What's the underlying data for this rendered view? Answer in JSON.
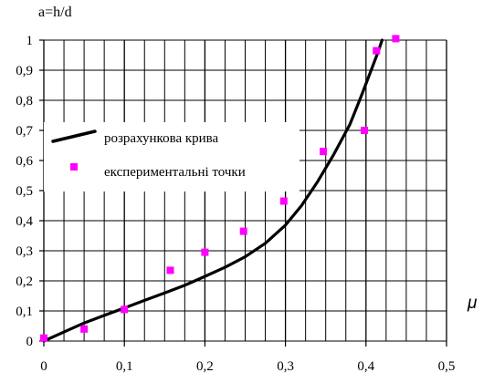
{
  "chart_data": {
    "type": "scatter",
    "ylabel": "a=h/d",
    "xlabel": "μ",
    "xlim": [
      0,
      0.5
    ],
    "ylim": [
      0,
      1
    ],
    "grid": true,
    "legend_placement": "upper-left",
    "x_tick_labels": [
      "0",
      "0,1",
      "0,2",
      "0,3",
      "0,4",
      "0,5"
    ],
    "y_tick_labels": [
      "0",
      "0,1",
      "0,2",
      "0,3",
      "0,4",
      "0,5",
      "0,6",
      "0,7",
      "0,8",
      "0,9",
      "1"
    ],
    "series": [
      {
        "name": "розрахункова крива",
        "kind": "line",
        "color": "#000000",
        "x": [
          0,
          0.025,
          0.05,
          0.075,
          0.1,
          0.125,
          0.15,
          0.175,
          0.2,
          0.225,
          0.25,
          0.275,
          0.3,
          0.32,
          0.34,
          0.36,
          0.38,
          0.395,
          0.405,
          0.415,
          0.42
        ],
        "y": [
          0,
          0.03,
          0.06,
          0.085,
          0.11,
          0.135,
          0.16,
          0.185,
          0.215,
          0.245,
          0.28,
          0.325,
          0.385,
          0.45,
          0.53,
          0.62,
          0.72,
          0.82,
          0.89,
          0.96,
          1.0
        ]
      },
      {
        "name": "експериментальні точки",
        "kind": "scatter",
        "color": "#ff00ff",
        "x": [
          0,
          0.05,
          0.1,
          0.157,
          0.2,
          0.248,
          0.298,
          0.347,
          0.398,
          0.413,
          0.437
        ],
        "y": [
          0.01,
          0.04,
          0.105,
          0.235,
          0.295,
          0.365,
          0.465,
          0.63,
          0.7,
          0.965,
          1.005
        ]
      }
    ]
  }
}
